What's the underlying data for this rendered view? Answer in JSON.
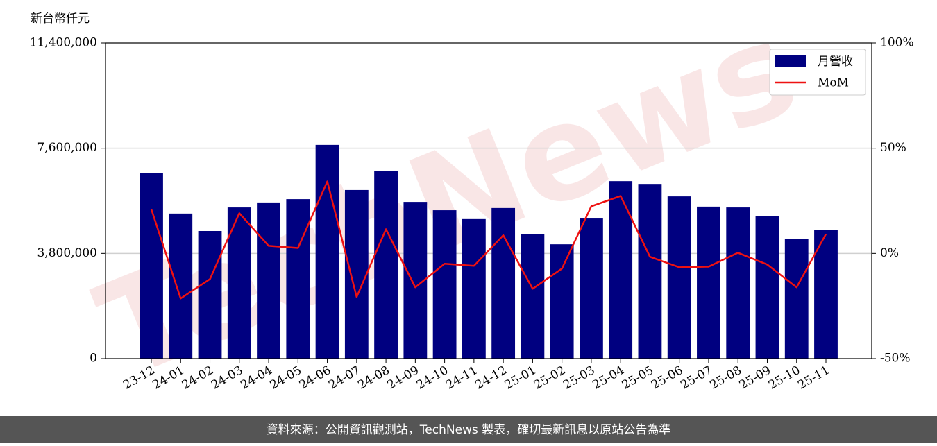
{
  "chart_data": {
    "type": "bar_line",
    "y_axis_label": "新台幣仟元",
    "watermark": "TechNews",
    "footer": "資料來源：公開資訊觀測站，TechNews 製表，確切最新訊息以原站公告為準",
    "categories": [
      "23-12",
      "24-01",
      "24-02",
      "24-03",
      "24-04",
      "24-05",
      "24-06",
      "24-07",
      "24-08",
      "24-09",
      "24-10",
      "24-11",
      "24-12",
      "25-01",
      "25-02",
      "25-03",
      "25-04",
      "25-05",
      "25-06",
      "25-07",
      "25-08",
      "25-09",
      "25-10",
      "25-11"
    ],
    "series": [
      {
        "name": "月營收",
        "type": "bar",
        "color": "#000080",
        "values": [
          6710000,
          5240000,
          4610000,
          5460000,
          5640000,
          5760000,
          7720000,
          6090000,
          6790000,
          5660000,
          5360000,
          5040000,
          5440000,
          4490000,
          4130000,
          5060000,
          6410000,
          6310000,
          5860000,
          5490000,
          5460000,
          5160000,
          4310000,
          4660000
        ]
      },
      {
        "name": "MoM",
        "type": "line",
        "axis": "y2",
        "color": "#ee1111",
        "values": [
          21.0,
          -21.4,
          -12.2,
          19.1,
          3.6,
          2.6,
          34.2,
          -20.7,
          11.5,
          -16.1,
          -4.9,
          -5.9,
          8.6,
          -16.8,
          -7.2,
          22.4,
          27.3,
          -1.6,
          -6.6,
          -6.3,
          0.3,
          -5.3,
          -16.1,
          9.2
        ]
      }
    ],
    "ylim": [
      0,
      11400000
    ],
    "yticks": [
      0,
      {
        "value": 3800000,
        "label": "3,800,000"
      },
      {
        "value": 7600000,
        "label": "7,600,000"
      },
      {
        "value": 11400000,
        "label": "11,400,000"
      }
    ],
    "y2lim": [
      -50,
      100
    ],
    "y2ticks": [
      {
        "value": -50,
        "label": "-50%"
      },
      {
        "value": 0,
        "label": "0%"
      },
      {
        "value": 50,
        "label": "50%"
      },
      {
        "value": 100,
        "label": "100%"
      }
    ],
    "grid": true,
    "legend": "upper right"
  }
}
